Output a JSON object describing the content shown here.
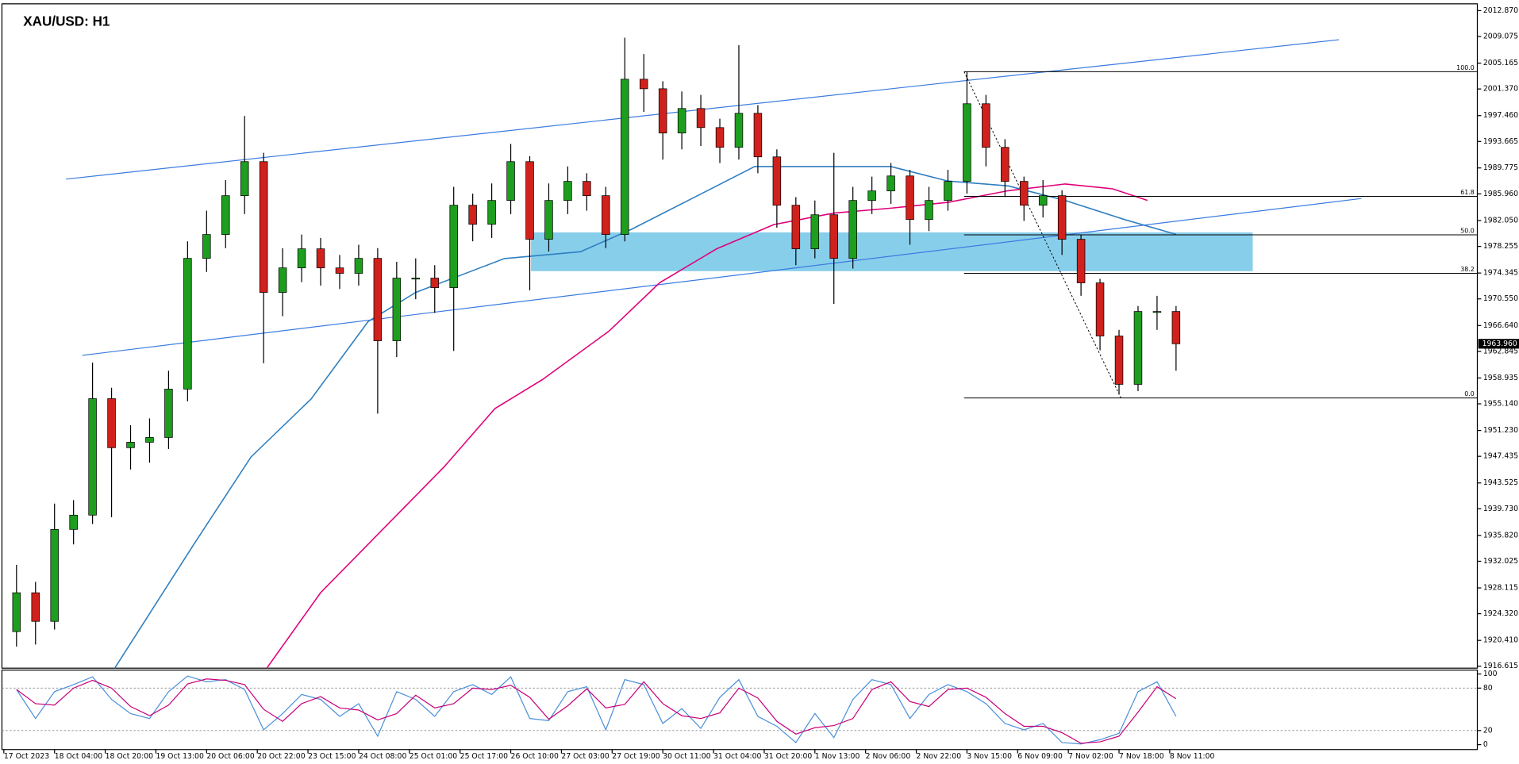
{
  "chart_data": [
    {
      "type": "candlestick",
      "title": "XAU/USD: H1",
      "x": [
        4,
        10,
        16,
        22,
        28,
        34,
        40,
        46,
        52,
        58,
        64,
        70,
        76,
        82,
        88,
        94,
        100,
        106,
        112,
        118,
        124,
        130,
        136,
        142,
        148,
        154,
        160,
        166,
        172,
        178,
        184,
        190,
        196,
        202,
        208,
        214,
        220,
        226,
        232,
        238,
        244,
        250,
        256,
        262,
        268,
        274,
        280,
        286,
        292,
        298,
        304,
        310,
        316,
        322,
        328,
        334,
        340,
        346,
        352,
        358,
        364,
        370
      ],
      "open": [
        1921.7,
        1927.4,
        1923.2,
        1936.7,
        1938.8,
        1955.9,
        1948.7,
        1949.5,
        1950.2,
        1957.3,
        1976.5,
        1980.0,
        1985.7,
        1990.7,
        1971.5,
        1975.1,
        1977.9,
        1975.1,
        1974.3,
        1976.5,
        1964.4,
        1973.6,
        1973.6,
        1972.2,
        1984.3,
        1981.5,
        1985.0,
        1990.7,
        1979.3,
        1985.0,
        1987.8,
        1985.7,
        1980.0,
        2002.8,
        2001.4,
        1994.9,
        1998.5,
        1995.7,
        1992.8,
        1997.8,
        1991.4,
        1984.3,
        1977.9,
        1982.9,
        1976.5,
        1985.0,
        1986.4,
        1988.6,
        1982.2,
        1985.0,
        1987.8,
        1999.2,
        1992.8,
        1987.8,
        1984.3,
        1985.7,
        1979.3,
        1972.9,
        1965.1,
        1958.0,
        1968.7,
        1968.7
      ],
      "high": [
        1931.5,
        1929.0,
        1940.5,
        1941.0,
        1961.2,
        1957.5,
        1952.0,
        1953.0,
        1960.0,
        1979.0,
        1983.5,
        1988.0,
        1997.4,
        1992.0,
        1978.0,
        1980.0,
        1979.5,
        1977.0,
        1978.5,
        1978.0,
        1976.0,
        1976.5,
        1975.5,
        1987.0,
        1986.0,
        1987.5,
        1993.3,
        1991.5,
        1987.5,
        1990.0,
        1989.0,
        1987.0,
        2008.9,
        2006.5,
        2002.5,
        2001.0,
        2000.5,
        1997.0,
        2007.8,
        1999.0,
        1992.5,
        1985.5,
        1985.0,
        1992.0,
        1987.0,
        1988.5,
        1990.5,
        1989.5,
        1987.0,
        1989.5,
        2003.9,
        2000.5,
        1994.0,
        1988.5,
        1988.0,
        1986.5,
        1980.0,
        1973.5,
        1966.0,
        1969.5,
        1971.0,
        1969.5
      ],
      "low": [
        1919.5,
        1919.8,
        1922.0,
        1934.5,
        1937.5,
        1938.5,
        1945.5,
        1946.5,
        1948.5,
        1955.5,
        1974.5,
        1978.0,
        1983.0,
        1961.1,
        1968.0,
        1973.0,
        1972.5,
        1972.0,
        1972.5,
        1953.7,
        1962.0,
        1970.5,
        1968.5,
        1962.9,
        1979.0,
        1979.5,
        1983.0,
        1971.8,
        1977.5,
        1983.0,
        1983.5,
        1978.0,
        1979.0,
        1998.0,
        1991.0,
        1992.5,
        1993.0,
        1990.5,
        1991.0,
        1989.0,
        1981.0,
        1975.5,
        1976.5,
        1969.8,
        1975.0,
        1983.0,
        1984.5,
        1978.5,
        1980.5,
        1983.5,
        1986.0,
        1990.0,
        1985.5,
        1982.0,
        1982.5,
        1977.0,
        1971.0,
        1963.0,
        1956.6,
        1957.0,
        1966.0,
        1960.0
      ],
      "close": [
        1927.4,
        1923.2,
        1936.7,
        1938.8,
        1955.9,
        1948.7,
        1949.5,
        1950.2,
        1957.3,
        1976.5,
        1980.0,
        1985.7,
        1990.7,
        1971.5,
        1975.1,
        1977.9,
        1975.1,
        1974.3,
        1976.5,
        1964.4,
        1973.6,
        1973.6,
        1972.2,
        1984.3,
        1981.5,
        1985.0,
        1990.7,
        1979.3,
        1985.0,
        1987.8,
        1985.7,
        1980.0,
        2002.8,
        2001.4,
        1994.9,
        1998.5,
        1995.7,
        1992.8,
        1997.8,
        1991.4,
        1984.3,
        1977.9,
        1982.9,
        1976.5,
        1985.0,
        1986.4,
        1988.6,
        1982.2,
        1985.0,
        1987.8,
        1999.2,
        1992.8,
        1987.8,
        1984.3,
        1985.7,
        1979.3,
        1972.9,
        1965.1,
        1958.0,
        1968.7,
        1968.7,
        1963.96
      ],
      "up_color": "#1e9e1e",
      "down_color": "#d0211c",
      "xlim": [
        -0.6,
        465.1
      ],
      "ylim": [
        1916.33,
        2013.87
      ],
      "xticks": [
        {
          "value": 0,
          "label": "17 Oct 2023"
        },
        {
          "value": 16,
          "label": "18 Oct 04:00"
        },
        {
          "value": 32,
          "label": "18 Oct 20:00"
        },
        {
          "value": 48,
          "label": "19 Oct 13:00"
        },
        {
          "value": 64,
          "label": "20 Oct 06:00"
        },
        {
          "value": 80,
          "label": "20 Oct 22:00"
        },
        {
          "value": 96,
          "label": "23 Oct 15:00"
        },
        {
          "value": 112,
          "label": "24 Oct 08:00"
        },
        {
          "value": 128,
          "label": "25 Oct 01:00"
        },
        {
          "value": 144,
          "label": "25 Oct 17:00"
        },
        {
          "value": 160,
          "label": "26 Oct 10:00"
        },
        {
          "value": 176,
          "label": "27 Oct 03:00"
        },
        {
          "value": 192,
          "label": "27 Oct 19:00"
        },
        {
          "value": 208,
          "label": "30 Oct 11:00"
        },
        {
          "value": 224,
          "label": "31 Oct 04:00"
        },
        {
          "value": 240,
          "label": "31 Oct 20:00"
        },
        {
          "value": 256,
          "label": "1 Nov 13:00"
        },
        {
          "value": 272,
          "label": "2 Nov 06:00"
        },
        {
          "value": 288,
          "label": "2 Nov 22:00"
        },
        {
          "value": 304,
          "label": "3 Nov 15:00"
        },
        {
          "value": 320,
          "label": "6 Nov 09:00"
        },
        {
          "value": 336,
          "label": "7 Nov 02:00"
        },
        {
          "value": 352,
          "label": "7 Nov 18:00"
        },
        {
          "value": 368,
          "label": "8 Nov 11:00"
        }
      ],
      "yticks": [
        {
          "value": 2012.87,
          "label": "2012.870"
        },
        2009.075,
        2005.165,
        {
          "value": 2001.37,
          "label": "2001.370"
        },
        {
          "value": 1997.46,
          "label": "1997.460"
        },
        1993.665,
        1989.775,
        {
          "value": 1985.96,
          "label": "1985.960"
        },
        {
          "value": 1982.05,
          "label": "1982.050"
        },
        1978.255,
        1974.345,
        {
          "value": 1970.55,
          "label": "1970.550"
        },
        {
          "value": 1966.64,
          "label": "1966.640"
        },
        1962.845,
        1958.935,
        {
          "value": 1955.14,
          "label": "1955.140"
        },
        {
          "value": 1951.23,
          "label": "1951.230"
        },
        1947.435,
        1943.525,
        {
          "value": 1939.73,
          "label": "1939.730"
        },
        {
          "value": 1935.82,
          "label": "1935.820"
        },
        1932.025,
        1928.115,
        {
          "value": 1924.32,
          "label": "1924.320"
        },
        {
          "value": 1920.41,
          "label": "1920.410"
        },
        1916.615
      ],
      "last_price": {
        "value": 1963.96,
        "label": "1963.960"
      },
      "moving_averages": [
        {
          "color": "#2f7fc1",
          "x": [
            35,
            60,
            78,
            97,
            115,
            130,
            146,
            158,
            182,
            198,
            219,
            237,
            259,
            280,
            298,
            317,
            335,
            354,
            370
          ],
          "values": [
            1916.33,
            1934.53,
            1947.33,
            1955.86,
            1967.23,
            1971.5,
            1974.34,
            1976.47,
            1977.47,
            1980.74,
            1985.71,
            1989.98,
            1989.98,
            1989.98,
            1987.85,
            1987.14,
            1985.0,
            1982.16,
            1980.03
          ]
        },
        {
          "color": "#e0007a",
          "x": [
            83,
            100,
            121,
            139,
            155,
            170,
            191,
            207,
            225,
            243,
            262,
            280,
            298,
            317,
            335,
            350,
            361
          ],
          "values": [
            1916.33,
            1927.42,
            1937.37,
            1945.9,
            1954.44,
            1958.7,
            1965.81,
            1972.92,
            1977.9,
            1981.45,
            1983.15,
            1983.87,
            1984.72,
            1986.43,
            1987.42,
            1986.71,
            1985.0
          ]
        }
      ],
      "trendlines": [
        {
          "color": "#3b7be0",
          "x": [
            19.6,
            421.4
          ],
          "values": [
            1988.13,
            2008.6
          ]
        },
        {
          "color": "#3b7be0",
          "x": [
            24.8,
            428.5
          ],
          "values": [
            1962.26,
            1985.29
          ]
        }
      ],
      "zone": {
        "color": "#87ceeb",
        "x": [
          166.4,
          394.2
        ],
        "values": [
          1980.31,
          1974.62
        ]
      },
      "fib": {
        "x": [
          303.1,
          352.6
        ],
        "values": [
          2003.91,
          1956.0
        ],
        "levels": [
          {
            "value": 100,
            "label": "100.0"
          },
          {
            "value": 61.8,
            "label": "61.8"
          },
          {
            "value": 50,
            "label": "50.0"
          },
          {
            "value": 38.2,
            "label": "38.2"
          },
          {
            "value": 0,
            "label": "0.0"
          }
        ]
      }
    },
    {
      "type": "line",
      "x": [
        4,
        10,
        16,
        22,
        28,
        34,
        40,
        46,
        52,
        58,
        64,
        70,
        76,
        82,
        88,
        94,
        100,
        106,
        112,
        118,
        124,
        130,
        136,
        142,
        148,
        154,
        160,
        166,
        172,
        178,
        184,
        190,
        196,
        202,
        208,
        214,
        220,
        226,
        232,
        238,
        244,
        250,
        256,
        262,
        268,
        274,
        280,
        286,
        292,
        298,
        304,
        310,
        316,
        322,
        328,
        334,
        340,
        346,
        352,
        358,
        364,
        370
      ],
      "series": [
        {
          "color": "#4a90d9",
          "values": [
            78,
            37,
            75,
            85,
            96,
            64,
            44,
            37,
            75,
            97,
            89,
            92,
            78,
            21,
            44,
            71,
            64,
            40,
            58,
            12,
            75,
            64,
            40,
            75,
            85,
            71,
            96,
            37,
            34,
            75,
            82,
            21,
            92,
            85,
            30,
            51,
            23,
            67,
            92,
            40,
            26,
            3,
            44,
            10,
            64,
            92,
            85,
            37,
            71,
            85,
            75,
            58,
            30,
            21,
            30,
            3,
            1,
            7,
            16,
            75,
            89,
            40
          ]
        },
        {
          "color": "#c8007a",
          "values": [
            78,
            58,
            56,
            80,
            91,
            80,
            54,
            41,
            56,
            86,
            93,
            91,
            85,
            50,
            33,
            58,
            68,
            52,
            49,
            35,
            44,
            70,
            52,
            58,
            80,
            78,
            84,
            67,
            36,
            55,
            79,
            52,
            57,
            89,
            58,
            41,
            37,
            45,
            80,
            66,
            33,
            15,
            24,
            27,
            37,
            78,
            89,
            61,
            54,
            78,
            80,
            67,
            44,
            26,
            26,
            17,
            2,
            4,
            12,
            46,
            82,
            65
          ]
        }
      ],
      "ylim": [
        0,
        100
      ],
      "yticks": [
        100,
        80,
        20,
        0
      ],
      "levels": [
        80,
        20
      ]
    }
  ]
}
